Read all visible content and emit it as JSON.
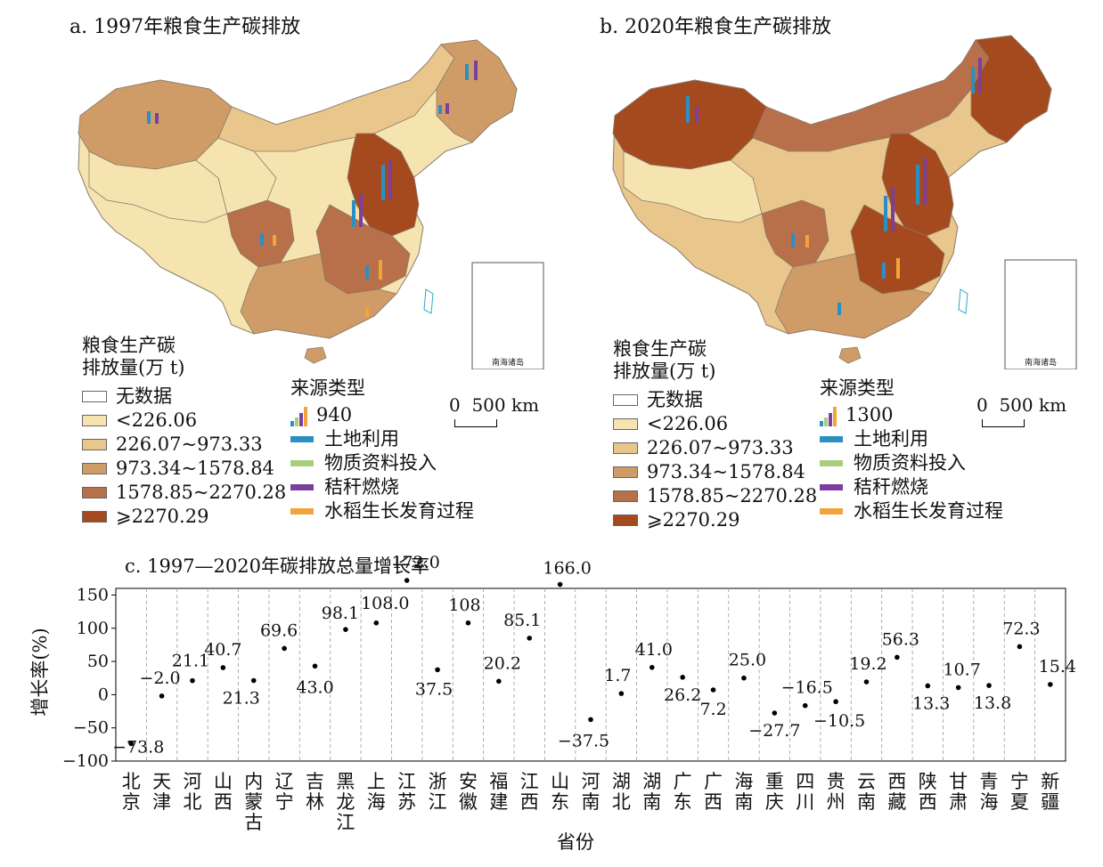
{
  "panel_a": {
    "title": "a. 1997年粮食生产碳排放",
    "scale_ref": "940"
  },
  "panel_b": {
    "title": "b. 2020年粮食生产碳排放",
    "scale_ref": "1300"
  },
  "map_legend": {
    "title_line1": "粮食生产碳",
    "title_line2": "排放量(万 t)",
    "classes": [
      {
        "label": "无数据",
        "color": "#ffffff"
      },
      {
        "label": "<226.06",
        "color": "#f6e4b0"
      },
      {
        "label": "226.07~973.33",
        "color": "#e8c68c"
      },
      {
        "label": "973.34~1578.84",
        "color": "#cf9c68"
      },
      {
        "label": "1578.85~2270.28",
        "color": "#b8704a"
      },
      {
        "label": "⩾2270.29",
        "color": "#a54a1e"
      }
    ]
  },
  "source_legend": {
    "title": "来源类型",
    "items": [
      {
        "label": "土地利用",
        "color": "#2b8fc4"
      },
      {
        "label": "物质资料投入",
        "color": "#a8cf7c"
      },
      {
        "label": "秸秆燃烧",
        "color": "#7b3fa0"
      },
      {
        "label": "水稻生长发育过程",
        "color": "#f2a33a"
      }
    ]
  },
  "scalebar": {
    "zero": "0",
    "label": "500 km"
  },
  "inset_label": "南海诸岛",
  "colors": {
    "sea": "#ffffff",
    "coast": "#2aa7c7",
    "border": "#8a7a6a"
  },
  "chart_data": {
    "type": "scatter",
    "title": "c. 1997—2020年碳排放总量增长率",
    "xlabel": "省份",
    "ylabel": "增长率(%)",
    "ylim": [
      -100,
      160
    ],
    "yticks": [
      "150",
      "100",
      "50",
      "0",
      "−50",
      "−100"
    ],
    "categories": [
      "北京",
      "天津",
      "河北",
      "山西",
      "内蒙古",
      "辽宁",
      "吉林",
      "黑龙江",
      "上海",
      "江苏",
      "浙江",
      "安徽",
      "福建",
      "江西",
      "山东",
      "河南",
      "湖北",
      "湖南",
      "广东",
      "广西",
      "海南",
      "重庆",
      "四川",
      "贵州",
      "云南",
      "西藏",
      "陕西",
      "甘肃",
      "青海",
      "宁夏",
      "新疆"
    ],
    "values": [
      -73.8,
      -2.0,
      21.1,
      40.7,
      21.3,
      69.6,
      43.0,
      98.1,
      108.0,
      172.0,
      37.5,
      108,
      20.2,
      85.1,
      166.0,
      -37.5,
      1.7,
      41.0,
      26.2,
      7.2,
      25.0,
      -27.7,
      -16.5,
      -10.5,
      19.2,
      56.3,
      13.3,
      10.7,
      13.8,
      72.3,
      15.4
    ],
    "labels": [
      "−73.8",
      "−2.0",
      "21.1",
      "40.7",
      "21.3",
      "69.6",
      "43.0",
      "98.1",
      "108.0",
      "172.0",
      "37.5",
      "108",
      "20.2",
      "85.1",
      "166.0",
      "−37.5",
      "1.7",
      "41.0",
      "26.2",
      "7.2",
      "25.0",
      "−27.7",
      "−16.5",
      "−10.5",
      "19.2",
      "56.3",
      "13.3",
      "10.7",
      "13.8",
      "72.3",
      "15.4"
    ]
  }
}
